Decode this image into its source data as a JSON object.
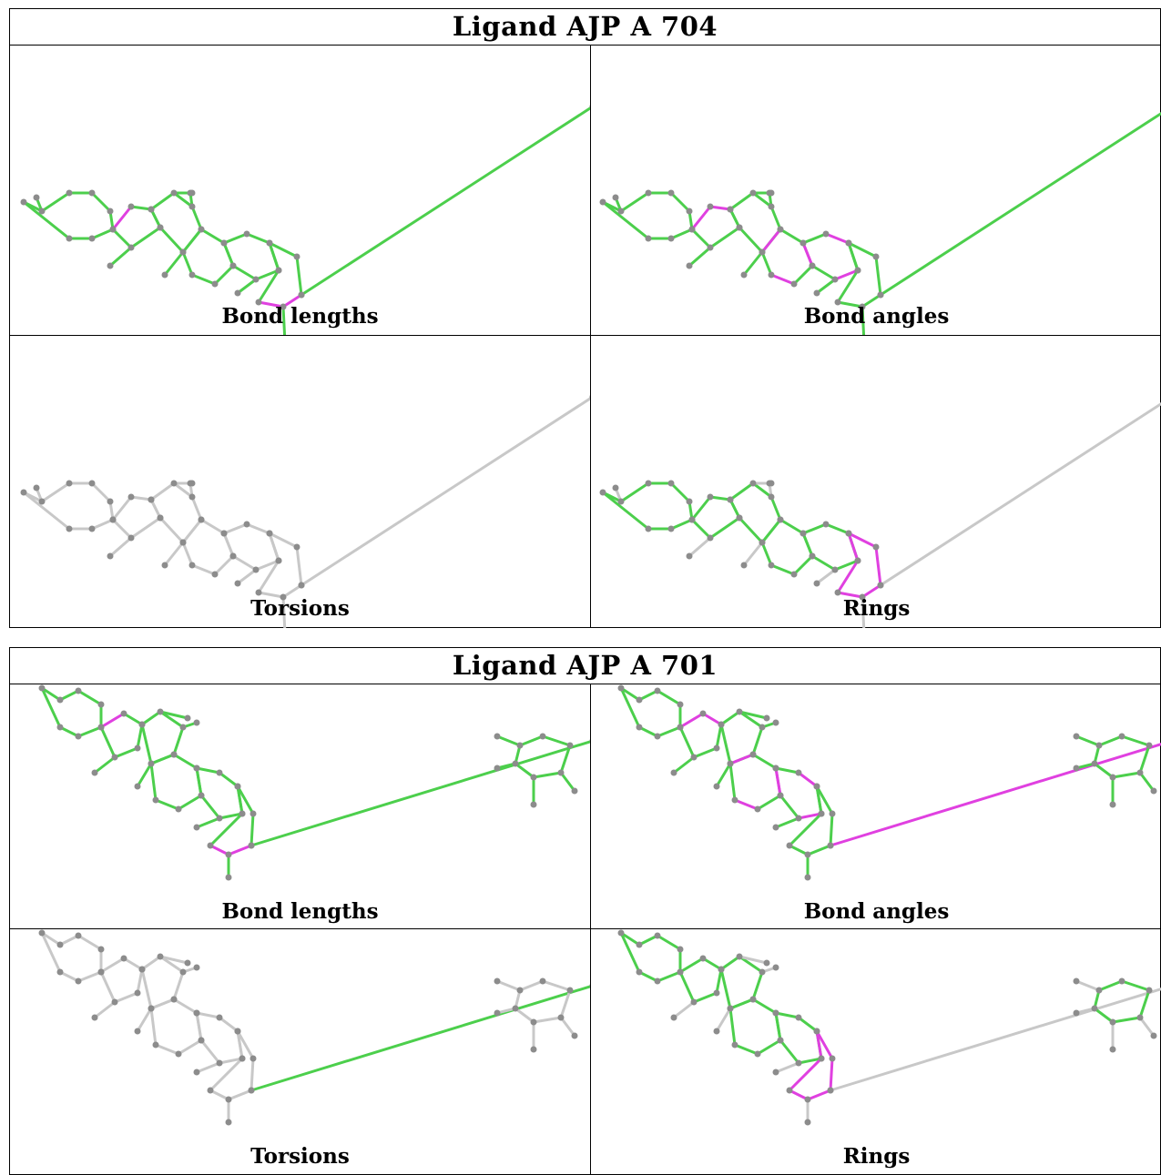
{
  "ligands": [
    {
      "title": "Ligand AJP A 704",
      "panels": [
        {
          "caption": "Bond lengths",
          "scheme": "lengths"
        },
        {
          "caption": "Bond angles",
          "scheme": "angles"
        },
        {
          "caption": "Torsions",
          "scheme": "torsions"
        },
        {
          "caption": "Rings",
          "scheme": "rings"
        }
      ]
    },
    {
      "title": "Ligand AJP A 701",
      "panels": [
        {
          "caption": "Bond lengths",
          "scheme": "lengths"
        },
        {
          "caption": "Bond angles",
          "scheme": "angles"
        },
        {
          "caption": "Torsions",
          "scheme": "torsions"
        },
        {
          "caption": "Rings",
          "scheme": "rings"
        }
      ]
    }
  ],
  "colors": {
    "ok": "#4ccf4c",
    "outlier": "#e040e0",
    "neutral": "#c8c8c8",
    "atom": "#8c8c8c",
    "border": "#000000"
  }
}
